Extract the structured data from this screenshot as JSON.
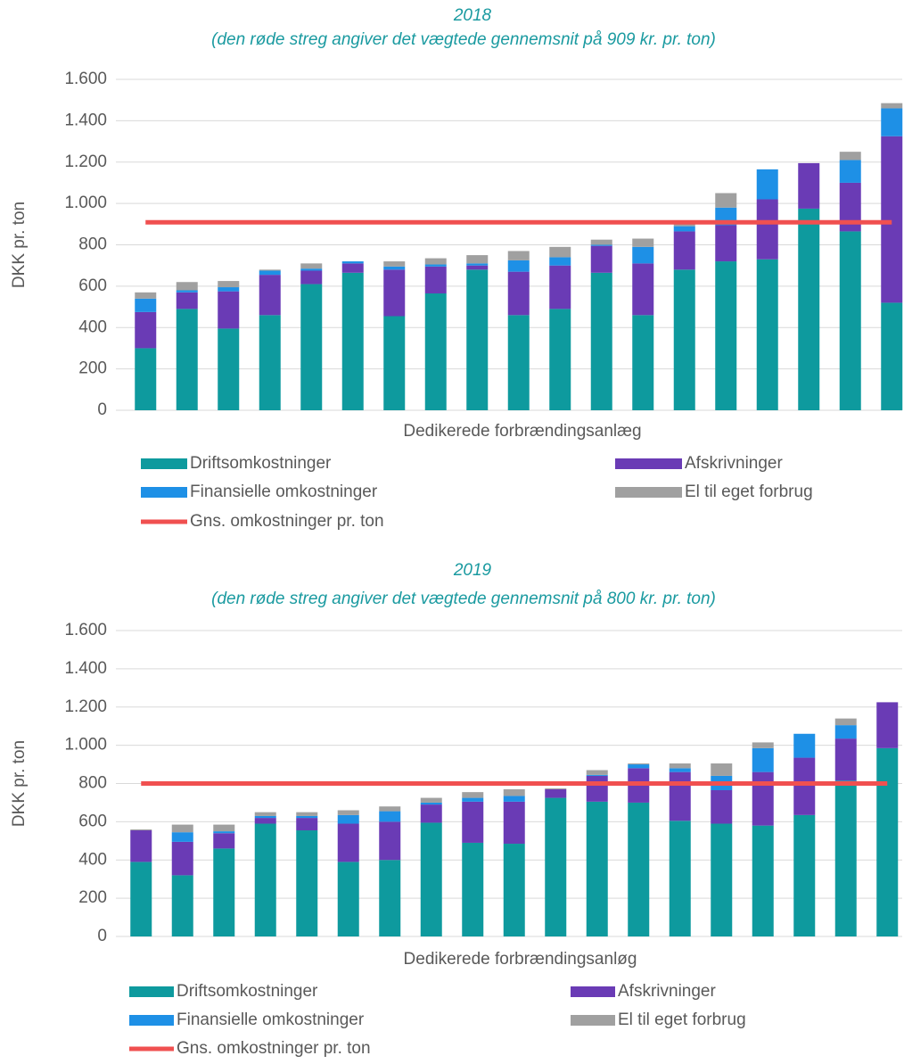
{
  "chart_data": [
    {
      "type": "bar",
      "stacked": true,
      "title": "2018",
      "subtitle": "(den røde streg angiver det vægtede gennemsnit på 909 kr. pr. ton)",
      "y_label": "DKK pr. ton",
      "x_label": "Dedikerede forbrændingsanlæg",
      "categories": [
        null,
        null,
        null,
        null,
        null,
        null,
        null,
        null,
        null,
        null,
        null,
        null,
        null,
        null,
        null,
        null,
        null,
        null,
        null
      ],
      "series": [
        {
          "name": "Driftsomkostninger",
          "color": "#0e9a9e",
          "values": [
            300,
            490,
            395,
            460,
            610,
            665,
            455,
            565,
            680,
            460,
            490,
            665,
            460,
            680,
            720,
            730,
            975,
            865,
            520
          ]
        },
        {
          "name": "Afskrivninger",
          "color": "#6a3bb5",
          "values": [
            175,
            80,
            180,
            195,
            65,
            45,
            225,
            130,
            20,
            210,
            210,
            130,
            250,
            185,
            175,
            290,
            220,
            235,
            805
          ]
        },
        {
          "name": "Finansielle omkostninger",
          "color": "#1e90e6",
          "values": [
            65,
            10,
            20,
            20,
            10,
            10,
            15,
            10,
            10,
            55,
            40,
            5,
            80,
            25,
            85,
            145,
            0,
            110,
            135
          ]
        },
        {
          "name": "El til eget forbrug",
          "color": "#a0a0a0",
          "values": [
            30,
            40,
            30,
            5,
            25,
            0,
            25,
            30,
            40,
            45,
            50,
            25,
            40,
            10,
            70,
            0,
            0,
            40,
            25
          ]
        },
        {
          "name": "Gns. omkostninger pr. ton",
          "type": "line",
          "color": "#f05050",
          "values": [
            909,
            909,
            909,
            909,
            909,
            909,
            909,
            909,
            909,
            909,
            909,
            909,
            909,
            909,
            909,
            909,
            909,
            909,
            909
          ]
        }
      ],
      "ylim": [
        0,
        1600
      ],
      "yticks": [
        0,
        200,
        400,
        600,
        800,
        {
          "value": 1000,
          "label": "1.000"
        },
        {
          "value": 1200,
          "label": "1.200"
        },
        {
          "value": 1400,
          "label": "1.400"
        },
        {
          "value": 1600,
          "label": "1.600"
        }
      ],
      "grid": true,
      "legend": "bottom"
    },
    {
      "type": "bar",
      "stacked": true,
      "title": "2019",
      "subtitle": "(den røde streg angiver det vægtede gennemsnit på 800 kr. pr. ton)",
      "y_label": "DKK pr. ton",
      "x_label": "Dedikerede forbrændingsanløg",
      "categories": [
        null,
        null,
        null,
        null,
        null,
        null,
        null,
        null,
        null,
        null,
        null,
        null,
        null,
        null,
        null,
        null,
        null,
        null,
        null
      ],
      "series": [
        {
          "name": "Driftsomkostninger",
          "color": "#0e9a9e",
          "values": [
            390,
            320,
            460,
            590,
            555,
            390,
            400,
            595,
            490,
            485,
            725,
            705,
            700,
            605,
            590,
            580,
            635,
            815,
            985
          ]
        },
        {
          "name": "Afskrivninger",
          "color": "#6a3bb5",
          "values": [
            165,
            175,
            80,
            30,
            65,
            200,
            200,
            95,
            215,
            220,
            45,
            135,
            180,
            255,
            175,
            280,
            300,
            220,
            240
          ]
        },
        {
          "name": "Finansielle omkostninger",
          "color": "#1e90e6",
          "values": [
            0,
            50,
            10,
            10,
            10,
            45,
            55,
            10,
            20,
            30,
            0,
            5,
            20,
            20,
            75,
            125,
            125,
            70,
            0
          ]
        },
        {
          "name": "El til eget forbrug",
          "color": "#a0a0a0",
          "values": [
            5,
            40,
            35,
            20,
            20,
            25,
            25,
            25,
            30,
            35,
            5,
            25,
            5,
            25,
            65,
            30,
            0,
            35,
            0
          ]
        },
        {
          "name": "Gns. omkostninger pr. ton",
          "type": "line",
          "color": "#f05050",
          "values": [
            800,
            800,
            800,
            800,
            800,
            800,
            800,
            800,
            800,
            800,
            800,
            800,
            800,
            800,
            800,
            800,
            800,
            800,
            800
          ]
        }
      ],
      "ylim": [
        0,
        1600
      ],
      "yticks": [
        0,
        200,
        400,
        600,
        800,
        {
          "value": 1000,
          "label": "1.000"
        },
        {
          "value": 1200,
          "label": "1.200"
        },
        {
          "value": 1400,
          "label": "1.400"
        },
        {
          "value": 1600,
          "label": "1.600"
        }
      ],
      "grid": true,
      "legend": "bottom"
    }
  ]
}
